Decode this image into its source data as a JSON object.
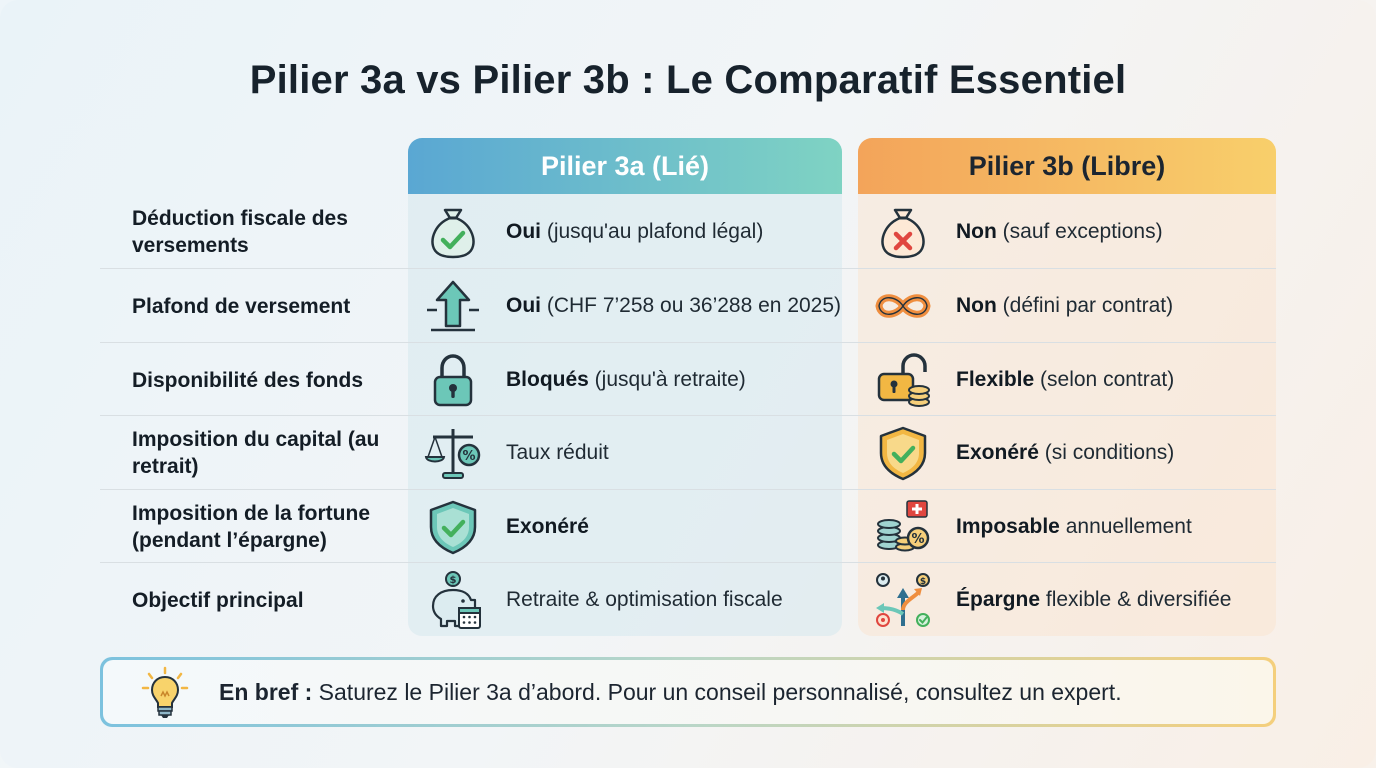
{
  "title": "Pilier 3a vs Pilier 3b : Le Comparatif Essentiel",
  "columns": {
    "a": {
      "label": "Pilier 3a (Lié)",
      "gradient": [
        "#5aa7d3",
        "#7fd3c3"
      ]
    },
    "b": {
      "label": "Pilier 3b (Libre)",
      "gradient": [
        "#f3a45a",
        "#f8cf6b"
      ]
    }
  },
  "rows": [
    {
      "criterion": "Déduction fiscale des versements",
      "a": {
        "icon": "money-bag-check-icon",
        "bold": "Oui",
        "rest": " (jusqu'au plafond légal)"
      },
      "b": {
        "icon": "money-bag-cross-icon",
        "bold": "Non",
        "rest": " (sauf exceptions)"
      }
    },
    {
      "criterion": "Plafond de versement",
      "a": {
        "icon": "arrow-up-limit-icon",
        "bold": "Oui",
        "rest": " (CHF 7’258 ou 36’288 en 2025)"
      },
      "b": {
        "icon": "infinity-icon",
        "bold": "Non",
        "rest": " (défini par contrat)"
      }
    },
    {
      "criterion": "Disponibilité des fonds",
      "a": {
        "icon": "padlock-closed-icon",
        "bold": "Bloqués",
        "rest": " (jusqu'à retraite)"
      },
      "b": {
        "icon": "padlock-open-coins-icon",
        "bold": "Flexible",
        "rest": " (selon contrat)"
      }
    },
    {
      "criterion": "Imposition du capital (au retrait)",
      "a": {
        "icon": "scale-percent-icon",
        "bold": "",
        "rest": "Taux réduit"
      },
      "b": {
        "icon": "shield-check-gold-icon",
        "bold": "Exonéré",
        "rest": " (si conditions)"
      }
    },
    {
      "criterion": "Imposition de la fortune (pendant l’épargne)",
      "a": {
        "icon": "shield-check-teal-icon",
        "bold": "Exonéré",
        "rest": ""
      },
      "b": {
        "icon": "coins-percent-swiss-icon",
        "bold": "Imposable",
        "rest": " annuellement"
      }
    },
    {
      "criterion": "Objectif principal",
      "a": {
        "icon": "piggy-bank-calendar-icon",
        "bold": "",
        "rest": "Retraite & optimisation fiscale"
      },
      "b": {
        "icon": "diverging-arrows-icon",
        "bold": "Épargne",
        "rest": " flexible & diversifiée"
      }
    }
  ],
  "summary": {
    "icon": "lightbulb-icon",
    "bold": "En bref :",
    "rest": " Saturez le Pilier 3a d’abord. Pour un conseil personnalisé, consultez un expert."
  },
  "colors": {
    "teal": "#4fae9c",
    "blue": "#2f6f8f",
    "orange": "#ef8e3f",
    "gold": "#f2b743",
    "red": "#e0463f",
    "green": "#43b05c"
  }
}
